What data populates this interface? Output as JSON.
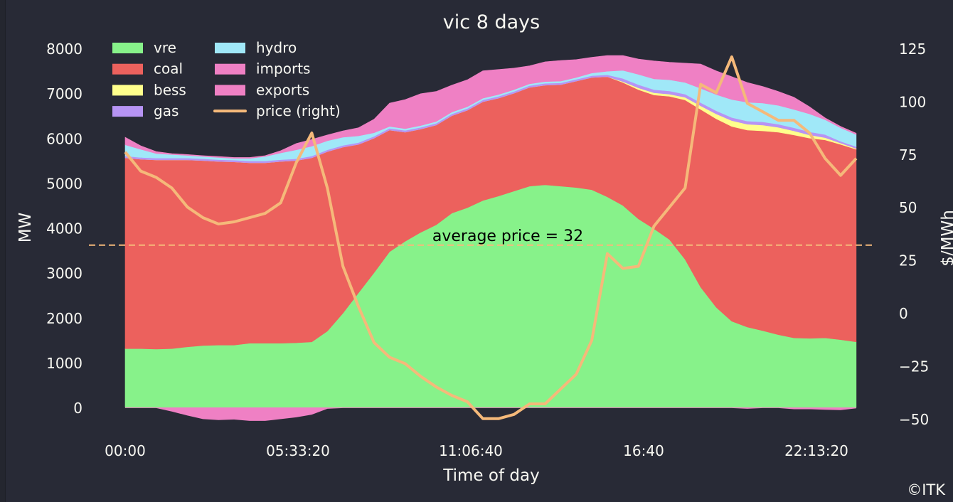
{
  "chart_data": {
    "type": "area",
    "title": "vic 8 days",
    "xlabel": "Time of day",
    "ylabel": "MW",
    "ylabel_right": "$/MWh",
    "x_interval_minutes": 30,
    "x_ticks": [
      "00:00",
      "05:33:20",
      "11:06:40",
      "16:40",
      "22:13:20"
    ],
    "x_tick_seconds": [
      0,
      20000,
      40000,
      60000,
      80000
    ],
    "y_ticks": [
      0,
      1000,
      2000,
      3000,
      4000,
      5000,
      6000,
      7000,
      8000
    ],
    "y_right_ticks": [
      "−50",
      "−25",
      "0",
      "25",
      "50",
      "75",
      "100",
      "125"
    ],
    "y_right_tick_values": [
      -50,
      -25,
      0,
      25,
      50,
      75,
      100,
      125
    ],
    "ylim": [
      -400,
      8400
    ],
    "ylim_right": [
      -55,
      130
    ],
    "legend_position": "top-left",
    "legend_columns": 2,
    "series": [
      {
        "name": "vre",
        "color": "#87f28a",
        "values": [
          1310,
          1310,
          1300,
          1310,
          1350,
          1380,
          1390,
          1390,
          1430,
          1430,
          1430,
          1440,
          1460,
          1700,
          2100,
          2550,
          3000,
          3470,
          3700,
          3900,
          4070,
          4330,
          4450,
          4610,
          4710,
          4820,
          4930,
          4960,
          4930,
          4900,
          4850,
          4690,
          4500,
          4200,
          3980,
          3740,
          3300,
          2680,
          2230,
          1920,
          1790,
          1710,
          1620,
          1550,
          1540,
          1550,
          1510,
          1460
        ]
      },
      {
        "name": "coal",
        "color": "#ec615d",
        "values": [
          4250,
          4220,
          4215,
          4205,
          4165,
          4120,
          4090,
          4080,
          4020,
          4020,
          4050,
          4060,
          4100,
          4000,
          3700,
          3310,
          3000,
          2710,
          2430,
          2300,
          2220,
          2170,
          2170,
          2200,
          2180,
          2180,
          2200,
          2220,
          2260,
          2370,
          2500,
          2680,
          2740,
          2880,
          2980,
          3190,
          3550,
          3960,
          4200,
          4340,
          4390,
          4450,
          4510,
          4520,
          4460,
          4410,
          4350,
          4290
        ]
      },
      {
        "name": "bess",
        "color": "#ffff8c",
        "values": [
          0,
          0,
          0,
          0,
          0,
          0,
          0,
          0,
          0,
          0,
          0,
          0,
          0,
          0,
          0,
          0,
          0,
          0,
          0,
          0,
          0,
          0,
          0,
          0,
          0,
          0,
          0,
          0,
          0,
          0,
          0,
          0,
          20,
          40,
          50,
          50,
          60,
          80,
          110,
          130,
          130,
          130,
          110,
          90,
          70,
          50,
          30,
          20
        ]
      },
      {
        "name": "gas",
        "color": "#b794f4",
        "values": [
          40,
          40,
          40,
          40,
          40,
          40,
          40,
          40,
          40,
          40,
          40,
          40,
          40,
          40,
          40,
          40,
          40,
          40,
          40,
          40,
          40,
          40,
          40,
          40,
          40,
          40,
          40,
          40,
          40,
          40,
          40,
          40,
          70,
          70,
          70,
          70,
          70,
          70,
          70,
          70,
          70,
          70,
          70,
          70,
          70,
          70,
          40,
          40
        ]
      },
      {
        "name": "hydro",
        "color": "#a0e8f8",
        "values": [
          250,
          180,
          100,
          80,
          60,
          50,
          50,
          40,
          60,
          100,
          150,
          200,
          220,
          200,
          180,
          150,
          80,
          40,
          40,
          40,
          40,
          40,
          40,
          40,
          40,
          40,
          40,
          40,
          40,
          40,
          60,
          80,
          180,
          230,
          240,
          250,
          260,
          320,
          360,
          400,
          420,
          420,
          420,
          410,
          400,
          330,
          300,
          270
        ]
      },
      {
        "name": "imports",
        "color": "#ef80c4",
        "values": [
          170,
          80,
          45,
          20,
          20,
          20,
          20,
          20,
          20,
          20,
          50,
          140,
          150,
          130,
          140,
          180,
          300,
          520,
          650,
          710,
          670,
          600,
          600,
          610,
          560,
          480,
          400,
          440,
          460,
          400,
          350,
          350,
          330,
          340,
          400,
          390,
          430,
          540,
          530,
          510,
          440,
          370,
          310,
          270,
          160,
          40,
          30,
          30
        ]
      },
      {
        "name": "exports",
        "color": "#ef80c4",
        "values": [
          0,
          0,
          -10,
          -90,
          -180,
          -260,
          -280,
          -270,
          -300,
          -300,
          -260,
          -220,
          -160,
          -30,
          -10,
          -10,
          -10,
          -10,
          -10,
          -10,
          -10,
          -10,
          -10,
          -10,
          -10,
          -10,
          -10,
          -10,
          -10,
          -10,
          -10,
          -10,
          -10,
          -10,
          -10,
          -10,
          -10,
          -10,
          -10,
          -10,
          -30,
          -10,
          -10,
          -40,
          -40,
          -50,
          -60,
          -20
        ]
      },
      {
        "name": "price (right)",
        "color": "#f5b97a",
        "axis": "right",
        "values": [
          76,
          67,
          64,
          59,
          50,
          45,
          42,
          43,
          45,
          47,
          52,
          71,
          85,
          59,
          22,
          3,
          -14,
          -21,
          -24,
          -30,
          -35,
          -39,
          -42,
          -50,
          -50,
          -48,
          -43,
          -43,
          -36,
          -29,
          -13,
          28,
          21,
          22,
          41,
          50,
          59,
          108,
          104,
          121,
          99,
          95,
          91,
          91,
          85,
          73,
          65,
          73
        ]
      }
    ],
    "annotations": [
      {
        "text": "average price = 32",
        "value": 32,
        "axis": "right",
        "style": "dashed"
      }
    ]
  },
  "copyright": "©ITK"
}
